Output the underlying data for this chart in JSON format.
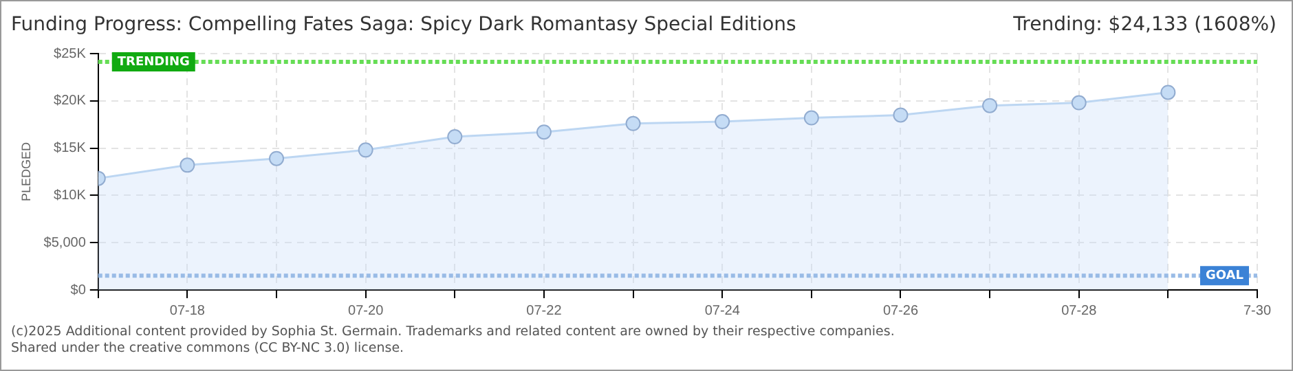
{
  "chart_data": {
    "type": "area",
    "title": "Funding Progress: Compelling Fates Saga: Spicy Dark Romantasy Special Editions",
    "subtitle": "Trending: $24,133 (1608%)",
    "ylabel": "PLEDGED",
    "x": [
      "--07-17",
      "--07-18",
      "--07-19",
      "--07-20",
      "--07-21",
      "--07-22",
      "--07-23",
      "--07-24",
      "--07-25",
      "--07-26",
      "--07-27",
      "--07-28",
      "--07-29"
    ],
    "series": [
      {
        "color": "#bcd6f2",
        "values": [
          11800,
          13200,
          13900,
          14800,
          16200,
          16700,
          17600,
          17800,
          18200,
          18500,
          19500,
          19800,
          20900
        ]
      }
    ],
    "xlim": [
      "--07-17",
      "--07-30"
    ],
    "xticks": [
      {
        "value": "--07-17",
        "label": null
      },
      {
        "value": "--07-18",
        "label": "07-18"
      },
      {
        "value": "--07-19",
        "label": null
      },
      {
        "value": "--07-20",
        "label": "07-20"
      },
      {
        "value": "--07-21",
        "label": null
      },
      {
        "value": "--07-22",
        "label": "07-22"
      },
      {
        "value": "--07-23",
        "label": null
      },
      {
        "value": "--07-24",
        "label": "07-24"
      },
      {
        "value": "--07-25",
        "label": null
      },
      {
        "value": "--07-26",
        "label": "07-26"
      },
      {
        "value": "--07-27",
        "label": null
      },
      {
        "value": "--07-28",
        "label": "07-28"
      },
      {
        "value": "--07-29",
        "label": null
      },
      {
        "value": "--07-30",
        "label": "7-30"
      }
    ],
    "ylim": [
      0,
      25000
    ],
    "yticks": [
      {
        "value": 0,
        "label": "$0"
      },
      {
        "value": 5000,
        "label": "$5,000"
      },
      {
        "value": 10000,
        "label": "$10K"
      },
      {
        "value": 15000,
        "label": "$15K"
      },
      {
        "value": 20000,
        "label": "$20K"
      },
      {
        "value": 25000,
        "label": "$25K"
      }
    ],
    "ref_lines": [
      {
        "axis": "y",
        "value": 24133,
        "label": "TRENDING",
        "color": "#66dd55",
        "line_style": "dotted"
      },
      {
        "axis": "y",
        "value": 1500,
        "label": "GOAL",
        "color": "#99bbe6",
        "line_style": "dotted"
      }
    ],
    "annotations": [
      "(c)2025 Additional content provided by Sophia St. Germain. Trademarks and related content are owned by their respective companies.",
      "Shared under the creative commons (CC BY-NC 3.0) license."
    ],
    "grid": true,
    "marker": "circle",
    "line_style": "solid",
    "legend": false
  }
}
